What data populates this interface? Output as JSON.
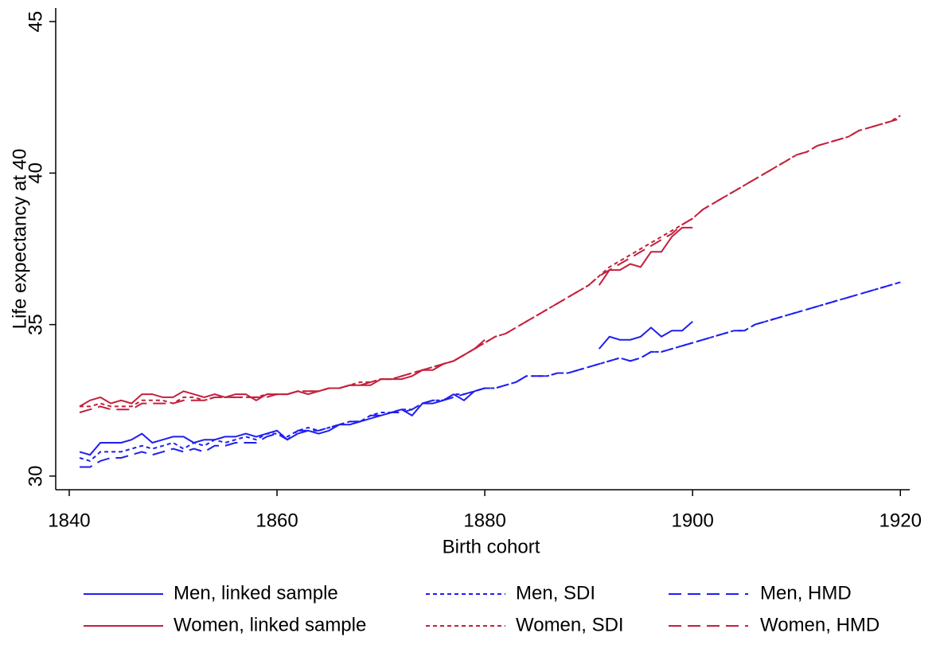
{
  "chart_data": {
    "type": "line",
    "y_label": "Life expectancy at 40",
    "x_label": "Birth cohort",
    "x": [
      1841,
      1842,
      1843,
      1844,
      1845,
      1846,
      1847,
      1848,
      1849,
      1850,
      1851,
      1852,
      1853,
      1854,
      1855,
      1856,
      1857,
      1858,
      1859,
      1860,
      1861,
      1862,
      1863,
      1864,
      1865,
      1866,
      1867,
      1868,
      1869,
      1870,
      1871,
      1872,
      1873,
      1874,
      1875,
      1876,
      1877,
      1878,
      1879,
      1880,
      1881,
      1882,
      1883,
      1884,
      1885,
      1886,
      1887,
      1888,
      1889,
      1890,
      1891,
      1892,
      1893,
      1894,
      1895,
      1896,
      1897,
      1898,
      1899,
      1900,
      1901,
      1902,
      1903,
      1904,
      1905,
      1906,
      1907,
      1908,
      1909,
      1910,
      1911,
      1912,
      1913,
      1914,
      1915,
      1916,
      1917,
      1918,
      1919,
      1920
    ],
    "xlim": [
      1838.7,
      1920.9
    ],
    "xticks": [
      1840,
      1860,
      1880,
      1900,
      1920
    ],
    "ylim": [
      29.55,
      45.45
    ],
    "yticks": [
      30,
      35,
      40,
      45
    ],
    "series": [
      {
        "name": "Men, linked sample",
        "color": "#1f1ff0",
        "dash": "solid",
        "values": [
          30.8,
          30.7,
          31.1,
          31.1,
          31.1,
          31.2,
          31.4,
          31.1,
          31.2,
          31.3,
          31.3,
          31.1,
          31.2,
          31.2,
          31.3,
          31.3,
          31.4,
          31.3,
          31.4,
          31.5,
          31.2,
          31.4,
          31.5,
          31.4,
          31.5,
          31.7,
          31.7,
          31.8,
          31.9,
          32.0,
          32.1,
          32.2,
          32.0,
          32.4,
          32.4,
          32.5,
          32.7,
          32.5,
          32.8,
          32.9,
          null,
          null,
          null,
          null,
          null,
          null,
          null,
          null,
          null,
          null,
          34.2,
          34.6,
          34.5,
          34.5,
          34.6,
          34.9,
          34.6,
          34.8,
          34.8,
          35.1,
          null,
          null,
          null,
          null,
          null,
          null,
          null,
          null,
          null,
          null,
          null,
          null,
          null,
          null,
          null,
          null,
          null,
          null,
          null,
          null
        ]
      },
      {
        "name": "Men, SDI",
        "color": "#1f1ff0",
        "dash": "dot",
        "values": [
          30.6,
          30.5,
          30.8,
          30.8,
          30.8,
          30.9,
          31.0,
          30.9,
          31.0,
          31.1,
          30.9,
          31.1,
          31.0,
          31.2,
          31.1,
          31.2,
          31.3,
          31.2,
          31.4,
          31.4,
          31.3,
          31.5,
          31.6,
          31.5,
          31.6,
          31.7,
          31.8,
          31.8,
          32.0,
          32.1,
          32.1,
          32.2,
          32.2,
          32.4,
          32.5,
          32.5,
          32.7,
          32.7,
          32.8,
          32.9,
          32.9,
          33.0,
          33.1,
          33.3,
          33.3,
          33.3,
          33.4,
          33.4,
          33.5,
          33.6,
          33.7,
          33.8,
          33.9,
          33.8,
          33.9,
          34.1,
          34.1,
          34.2,
          34.3,
          34.4,
          34.5,
          34.6,
          34.7,
          34.8,
          34.8,
          35.0,
          35.1,
          35.2,
          35.3,
          35.4,
          35.5,
          35.6,
          35.7,
          35.8,
          35.9,
          36.0,
          36.1,
          36.2,
          36.3,
          36.4
        ]
      },
      {
        "name": "Men, HMD",
        "color": "#1f1ff0",
        "dash": "dash",
        "values": [
          30.3,
          30.3,
          30.5,
          30.6,
          30.6,
          30.7,
          30.8,
          30.7,
          30.8,
          30.9,
          30.8,
          30.9,
          30.8,
          31.0,
          31.0,
          31.1,
          31.1,
          31.1,
          31.3,
          31.4,
          31.2,
          31.5,
          31.5,
          31.5,
          31.6,
          31.7,
          31.8,
          31.8,
          32.0,
          32.0,
          32.1,
          32.1,
          32.2,
          32.4,
          32.5,
          32.5,
          32.6,
          32.7,
          32.8,
          32.9,
          32.9,
          33.0,
          33.1,
          33.3,
          33.3,
          33.3,
          33.4,
          33.4,
          33.5,
          33.6,
          33.7,
          33.8,
          33.9,
          33.8,
          33.9,
          34.1,
          34.1,
          34.2,
          34.3,
          34.4,
          34.5,
          34.6,
          34.7,
          34.8,
          34.8,
          35.0,
          35.1,
          35.2,
          35.3,
          35.4,
          35.5,
          35.6,
          35.7,
          35.8,
          35.9,
          36.0,
          36.1,
          36.2,
          36.3,
          36.4
        ]
      },
      {
        "name": "Women, linked sample",
        "color": "#c4203c",
        "dash": "solid",
        "values": [
          32.3,
          32.5,
          32.6,
          32.4,
          32.5,
          32.4,
          32.7,
          32.7,
          32.6,
          32.6,
          32.8,
          32.7,
          32.6,
          32.7,
          32.6,
          32.7,
          32.7,
          32.5,
          32.7,
          32.7,
          32.7,
          32.8,
          32.7,
          32.8,
          32.9,
          32.9,
          33.0,
          33.0,
          33.0,
          33.2,
          33.2,
          33.2,
          33.3,
          33.5,
          33.5,
          33.7,
          33.8,
          34.0,
          34.2,
          34.5,
          null,
          null,
          null,
          null,
          null,
          null,
          null,
          null,
          null,
          null,
          36.3,
          36.8,
          36.8,
          37.0,
          36.9,
          37.4,
          37.4,
          37.9,
          38.2,
          38.2,
          null,
          null,
          null,
          null,
          null,
          null,
          null,
          null,
          null,
          null,
          null,
          null,
          null,
          null,
          null,
          null,
          null,
          null,
          null,
          null
        ]
      },
      {
        "name": "Women, SDI",
        "color": "#c4203c",
        "dash": "dot",
        "values": [
          32.3,
          32.3,
          32.4,
          32.3,
          32.3,
          32.3,
          32.5,
          32.5,
          32.5,
          32.4,
          32.6,
          32.6,
          32.5,
          32.6,
          32.6,
          32.6,
          32.6,
          32.6,
          32.7,
          32.7,
          32.7,
          32.8,
          32.8,
          32.8,
          32.9,
          32.9,
          33.0,
          33.1,
          33.1,
          33.2,
          33.2,
          33.3,
          33.4,
          33.5,
          33.6,
          33.7,
          33.8,
          34.0,
          34.2,
          34.4,
          34.6,
          34.7,
          34.9,
          35.1,
          35.3,
          35.5,
          35.7,
          35.9,
          36.1,
          36.3,
          36.6,
          36.9,
          37.1,
          37.3,
          37.5,
          37.7,
          37.9,
          38.1,
          38.3,
          38.5,
          38.8,
          39.0,
          39.2,
          39.4,
          39.6,
          39.8,
          40.0,
          40.2,
          40.4,
          40.6,
          40.7,
          40.9,
          41.0,
          41.1,
          41.2,
          41.4,
          41.5,
          41.6,
          41.7,
          41.9
        ]
      },
      {
        "name": "Women, HMD",
        "color": "#c4203c",
        "dash": "dash",
        "values": [
          32.1,
          32.2,
          32.3,
          32.2,
          32.2,
          32.2,
          32.4,
          32.4,
          32.4,
          32.4,
          32.5,
          32.5,
          32.5,
          32.6,
          32.6,
          32.6,
          32.6,
          32.6,
          32.6,
          32.7,
          32.7,
          32.8,
          32.8,
          32.8,
          32.9,
          32.9,
          33.0,
          33.0,
          33.1,
          33.2,
          33.2,
          33.3,
          33.4,
          33.5,
          33.6,
          33.7,
          33.8,
          34.0,
          34.2,
          34.4,
          34.6,
          34.7,
          34.9,
          35.1,
          35.3,
          35.5,
          35.7,
          35.9,
          36.1,
          36.3,
          36.6,
          36.8,
          37.0,
          37.2,
          37.4,
          37.6,
          37.8,
          38.0,
          38.3,
          38.5,
          38.8,
          39.0,
          39.2,
          39.4,
          39.6,
          39.8,
          40.0,
          40.2,
          40.4,
          40.6,
          40.7,
          40.9,
          41.0,
          41.1,
          41.2,
          41.4,
          41.5,
          41.6,
          41.7,
          41.8
        ]
      }
    ]
  }
}
